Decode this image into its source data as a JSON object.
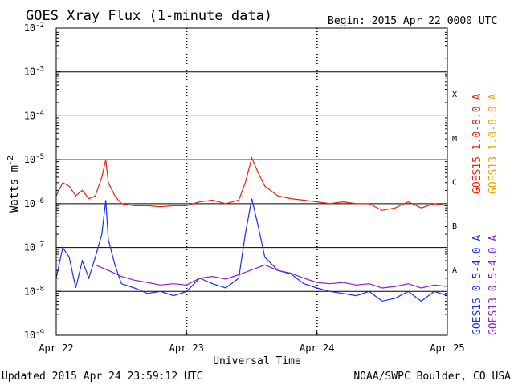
{
  "chart_data": {
    "type": "line",
    "title": "GOES Xray Flux (1-minute data)",
    "begin_label": "Begin:  2015 Apr 22 0000 UTC",
    "ylabel_main": "Watts m",
    "ylabel_exp": "-2",
    "xlabel": "Universal Time",
    "x_ticks": [
      "Apr 22",
      "Apr 23",
      "Apr 24",
      "Apr 25"
    ],
    "x_range_days": [
      0,
      3
    ],
    "y_scale": "log",
    "y_exponents": [
      -9,
      -8,
      -7,
      -6,
      -5,
      -4,
      -3,
      -2
    ],
    "y_tick_base": "10",
    "flare_classes": [
      "A",
      "B",
      "C",
      "M",
      "X"
    ],
    "grid": true,
    "series": [
      {
        "name": "GOES15 1.0-8.0 A",
        "color": "#e8220e",
        "x": [
          0.0,
          0.05,
          0.1,
          0.15,
          0.2,
          0.25,
          0.3,
          0.35,
          0.38,
          0.4,
          0.45,
          0.5,
          0.6,
          0.7,
          0.8,
          0.9,
          1.0,
          1.1,
          1.2,
          1.3,
          1.4,
          1.45,
          1.5,
          1.55,
          1.6,
          1.7,
          1.8,
          1.9,
          2.0,
          2.1,
          2.2,
          2.3,
          2.4,
          2.5,
          2.6,
          2.7,
          2.8,
          2.9,
          3.0
        ],
        "y": [
          1.5e-06,
          3e-06,
          2.5e-06,
          1.5e-06,
          2e-06,
          1.3e-06,
          1.5e-06,
          4e-06,
          1e-05,
          3e-06,
          1.5e-06,
          1e-06,
          9e-07,
          9e-07,
          8.5e-07,
          9e-07,
          9e-07,
          1.1e-06,
          1.2e-06,
          1e-06,
          1.2e-06,
          3e-06,
          1.1e-05,
          5e-06,
          2.5e-06,
          1.5e-06,
          1.3e-06,
          1.2e-06,
          1.1e-06,
          1e-06,
          1.1e-06,
          1e-06,
          1e-06,
          7e-07,
          8e-07,
          1.1e-06,
          8e-07,
          1e-06,
          9e-07
        ]
      },
      {
        "name": "GOES13 1.0-8.0 A",
        "color": "#f0a000",
        "x": [],
        "y": []
      },
      {
        "name": "GOES15 0.5-4.0 A",
        "color": "#1e2ee8",
        "x": [
          0.0,
          0.05,
          0.1,
          0.15,
          0.2,
          0.25,
          0.3,
          0.35,
          0.38,
          0.4,
          0.45,
          0.5,
          0.6,
          0.7,
          0.8,
          0.9,
          1.0,
          1.1,
          1.2,
          1.3,
          1.4,
          1.45,
          1.5,
          1.55,
          1.6,
          1.7,
          1.8,
          1.9,
          2.0,
          2.1,
          2.2,
          2.3,
          2.4,
          2.5,
          2.6,
          2.7,
          2.8,
          2.9,
          3.0
        ],
        "y": [
          2e-08,
          1e-07,
          6e-08,
          1.2e-08,
          5e-08,
          2e-08,
          6e-08,
          2e-07,
          1.2e-06,
          1.5e-07,
          4e-08,
          1.5e-08,
          1.2e-08,
          9e-09,
          1e-08,
          8e-09,
          1e-08,
          2e-08,
          1.5e-08,
          1.2e-08,
          2e-08,
          2e-07,
          1.3e-06,
          3e-07,
          6e-08,
          3e-08,
          2.5e-08,
          1.5e-08,
          1.2e-08,
          1e-08,
          9e-09,
          8e-09,
          1e-08,
          6e-09,
          7e-09,
          1e-08,
          6e-09,
          1e-08,
          8e-09
        ]
      },
      {
        "name": "GOES13 0.5-4.0 A",
        "color": "#8a1ec8",
        "x": [
          0.3,
          0.4,
          0.5,
          0.6,
          0.7,
          0.8,
          0.9,
          1.0,
          1.1,
          1.2,
          1.3,
          1.4,
          1.6,
          1.7,
          1.8,
          1.9,
          2.0,
          2.1,
          2.2,
          2.3,
          2.4,
          2.5,
          2.6,
          2.7,
          2.8,
          2.9,
          3.0
        ],
        "y": [
          4e-08,
          3e-08,
          2.2e-08,
          1.8e-08,
          1.6e-08,
          1.4e-08,
          1.5e-08,
          1.4e-08,
          2e-08,
          2.2e-08,
          1.9e-08,
          2.4e-08,
          4e-08,
          3e-08,
          2.6e-08,
          2e-08,
          1.6e-08,
          1.5e-08,
          1.6e-08,
          1.4e-08,
          1.5e-08,
          1.2e-08,
          1.3e-08,
          1.5e-08,
          1.2e-08,
          1.4e-08,
          1.3e-08
        ]
      }
    ]
  },
  "footer": {
    "updated": "Updated 2015 Apr 24 23:59:12 UTC",
    "credit": "NOAA/SWPC Boulder, CO USA"
  }
}
